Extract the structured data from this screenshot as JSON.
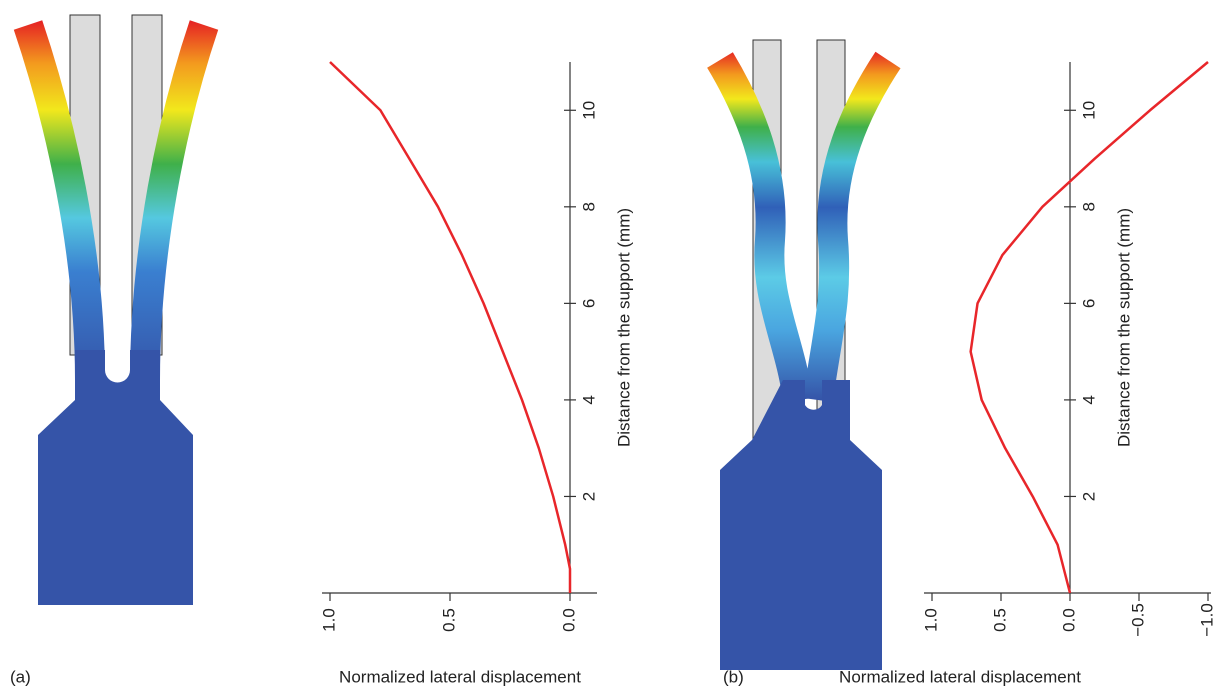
{
  "chart_data": [
    {
      "type": "line",
      "panel_label": "(a)",
      "x_label": "Distance from the support (mm)",
      "y_label": "Normalized lateral displacement",
      "x": [
        0,
        0.5,
        1,
        2,
        3,
        4,
        5,
        6,
        7,
        8,
        9,
        10,
        11
      ],
      "values": [
        0,
        0,
        0.02,
        0.07,
        0.13,
        0.2,
        0.28,
        0.36,
        0.45,
        0.55,
        0.67,
        0.79,
        1.0
      ],
      "color": "#e8262a",
      "xlim": [
        0,
        11
      ],
      "xticks": [
        2,
        4,
        6,
        8,
        10
      ],
      "ylim": [
        1.0,
        -0.1
      ],
      "yticks": [
        {
          "value": 1.0,
          "label": "1.0"
        },
        {
          "value": 0.5,
          "label": "0.5"
        },
        {
          "value": 0,
          "label": "0.0"
        }
      ]
    },
    {
      "type": "line",
      "panel_label": "(b)",
      "x_label": "Distance from the support (mm)",
      "y_label": "Normalized lateral displacement",
      "x": [
        0,
        1,
        2,
        3,
        4,
        5,
        6,
        7,
        8,
        9,
        10,
        11
      ],
      "values": [
        0,
        0.09,
        0.27,
        0.47,
        0.64,
        0.72,
        0.67,
        0.49,
        0.2,
        -0.18,
        -0.58,
        -1.0
      ],
      "color": "#e8262a",
      "xlim": [
        0,
        11
      ],
      "xticks": [
        2,
        4,
        6,
        8,
        10
      ],
      "ylim": [
        1.0,
        -1.0
      ],
      "yticks": [
        {
          "value": 1.0,
          "label": "1.0"
        },
        {
          "value": 0.5,
          "label": "0.5"
        },
        {
          "value": 0,
          "label": "0.0"
        },
        {
          "value": -0.5,
          "label": "−0.5"
        },
        {
          "value": -1.0,
          "label": "−1.0"
        }
      ]
    }
  ]
}
